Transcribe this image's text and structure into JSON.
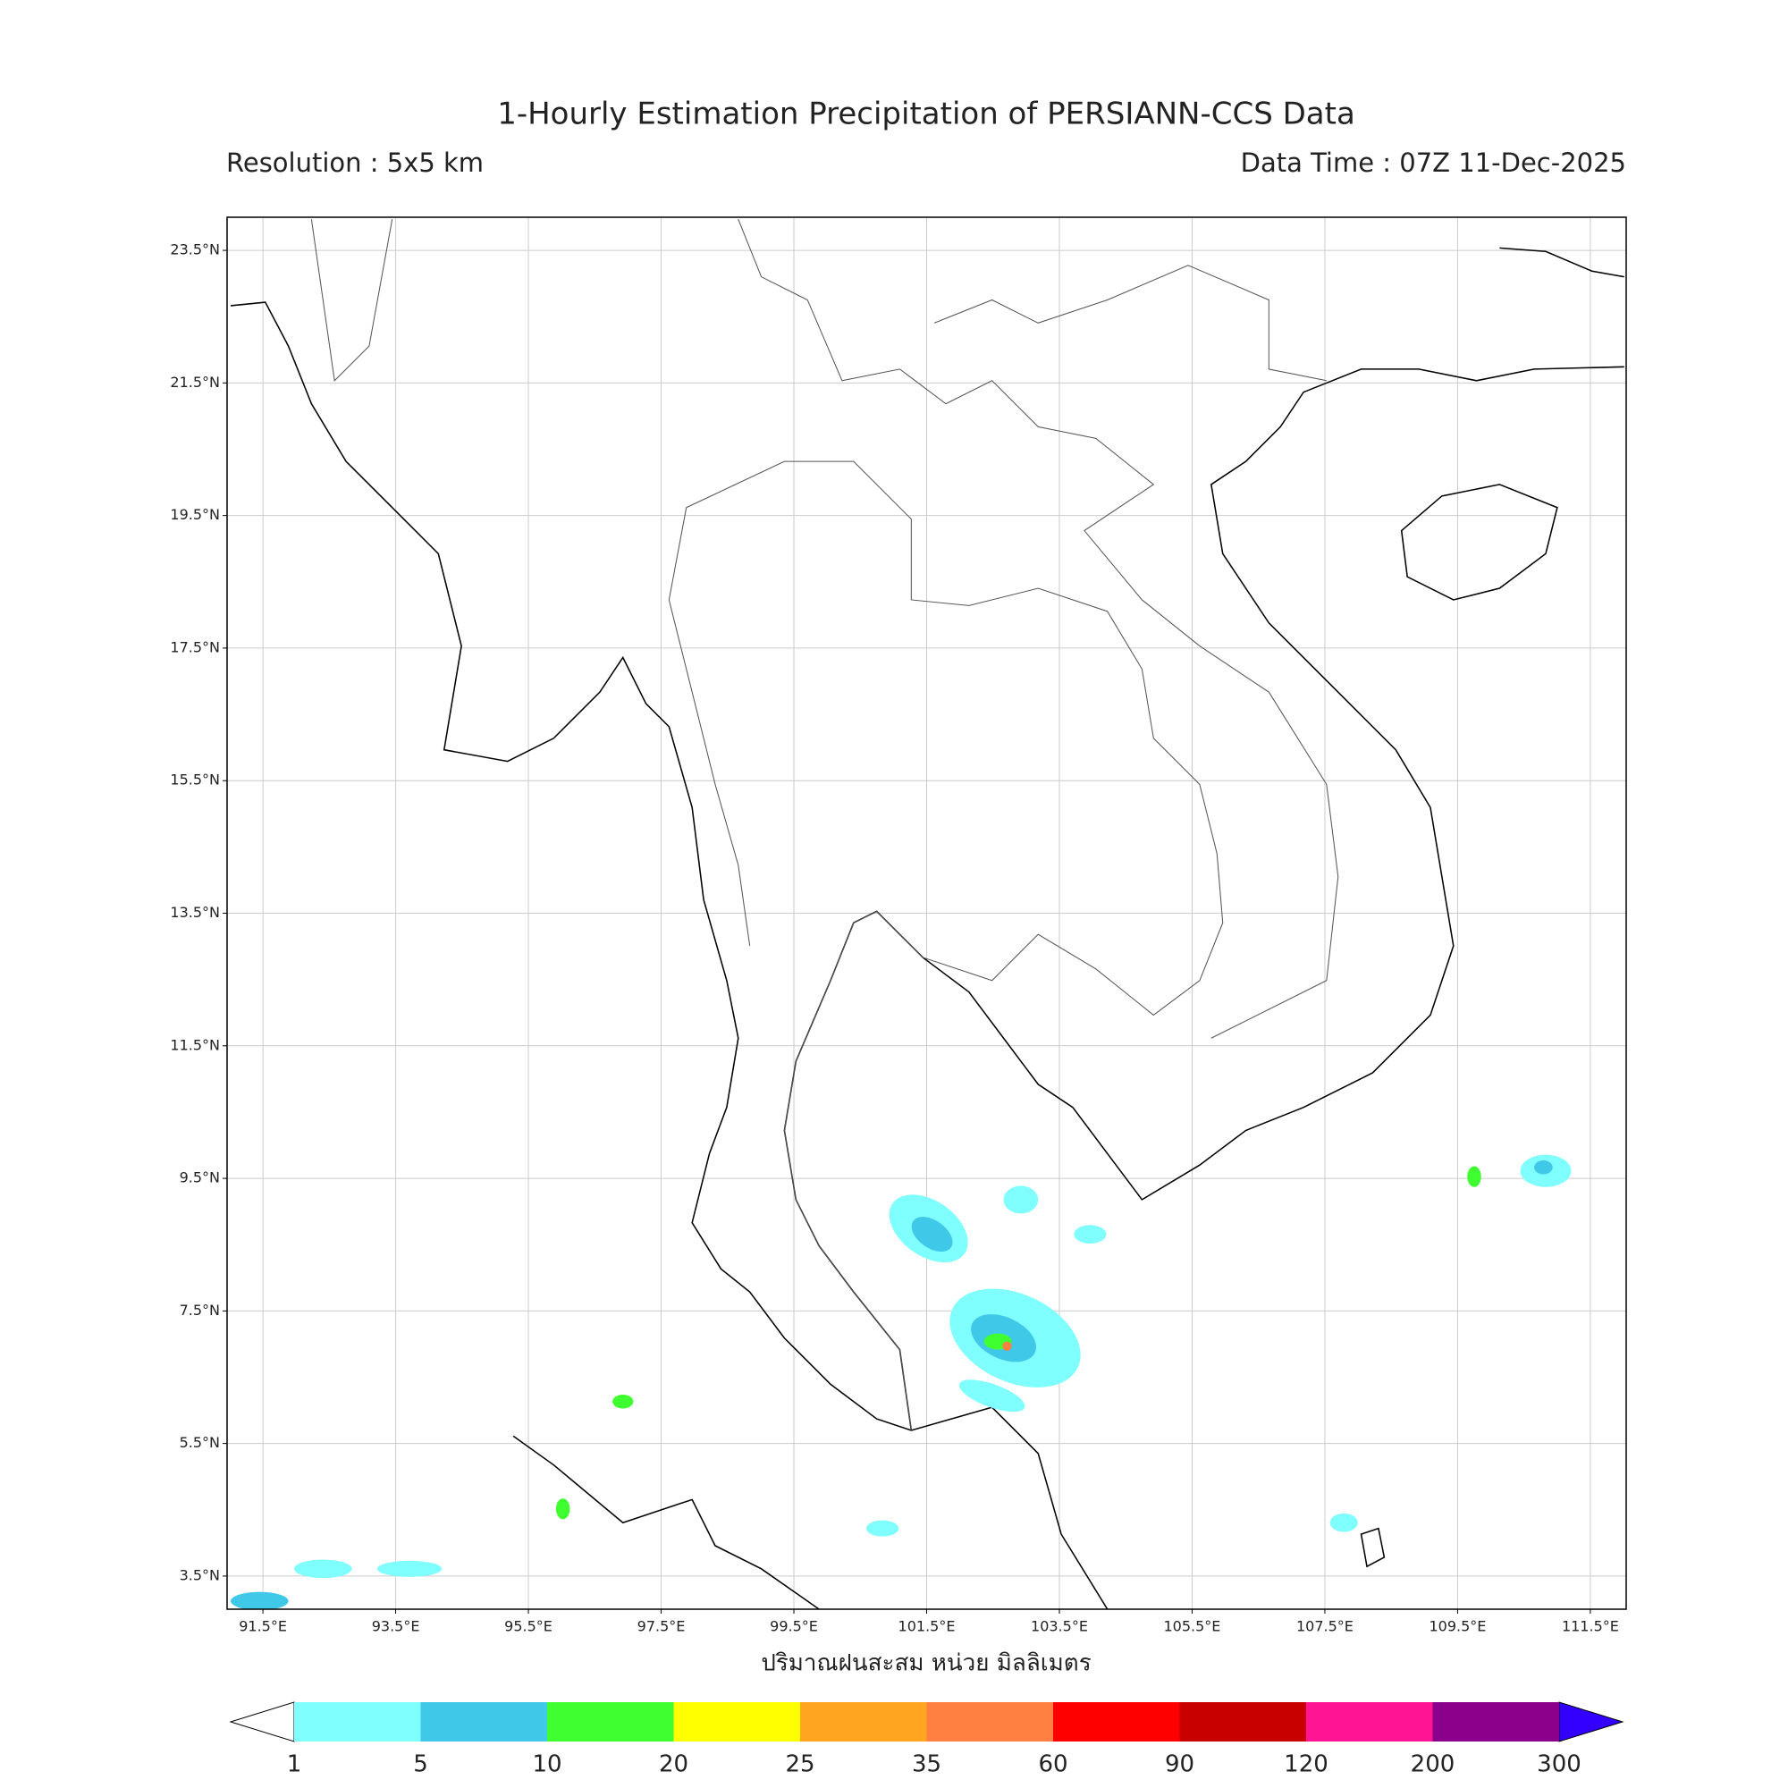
{
  "header": {
    "title": "1-Hourly Estimation Precipitation of PERSIANN-CCS Data",
    "resolution": "Resolution : 5x5 km",
    "data_time": "Data Time : 07Z 11-Dec-2025"
  },
  "map": {
    "xlabel": "ปริมาณฝนสะสม หน่วย มิลลิเมตร",
    "lonlim": [
      90.96,
      112.04
    ],
    "latlim": [
      3.0,
      24.0
    ],
    "grid": true,
    "lon_ticks": [
      {
        "value": 91.5,
        "label": "91.5°E"
      },
      {
        "value": 93.5,
        "label": "93.5°E"
      },
      {
        "value": 95.5,
        "label": "95.5°E"
      },
      {
        "value": 97.5,
        "label": "97.5°E"
      },
      {
        "value": 99.5,
        "label": "99.5°E"
      },
      {
        "value": 101.5,
        "label": "101.5°E"
      },
      {
        "value": 103.5,
        "label": "103.5°E"
      },
      {
        "value": 105.5,
        "label": "105.5°E"
      },
      {
        "value": 107.5,
        "label": "107.5°E"
      },
      {
        "value": 109.5,
        "label": "109.5°E"
      },
      {
        "value": 111.5,
        "label": "111.5°E"
      }
    ],
    "lat_ticks": [
      {
        "value": 23.5,
        "label": "23.5°N"
      },
      {
        "value": 21.5,
        "label": "21.5°N"
      },
      {
        "value": 19.5,
        "label": "19.5°N"
      },
      {
        "value": 17.5,
        "label": "17.5°N"
      },
      {
        "value": 15.5,
        "label": "15.5°N"
      },
      {
        "value": 13.5,
        "label": "13.5°N"
      },
      {
        "value": 11.5,
        "label": "11.5°N"
      },
      {
        "value": 9.5,
        "label": "9.5°N"
      },
      {
        "value": 7.5,
        "label": "7.5°N"
      },
      {
        "value": 5.5,
        "label": "5.5°N"
      },
      {
        "value": 3.5,
        "label": "3.5°N"
      }
    ]
  },
  "colorbar": {
    "levels": [
      1,
      5,
      10,
      20,
      25,
      35,
      60,
      90,
      120,
      200,
      300
    ],
    "colors": [
      "#80ffff",
      "#40c8e8",
      "#40ff30",
      "#ffff00",
      "#ffa520",
      "#ff8040",
      "#ff0000",
      "#c80000",
      "#ff1493",
      "#8b008b"
    ],
    "under_color": "#ffffff",
    "over_color": "#3300ff"
  }
}
